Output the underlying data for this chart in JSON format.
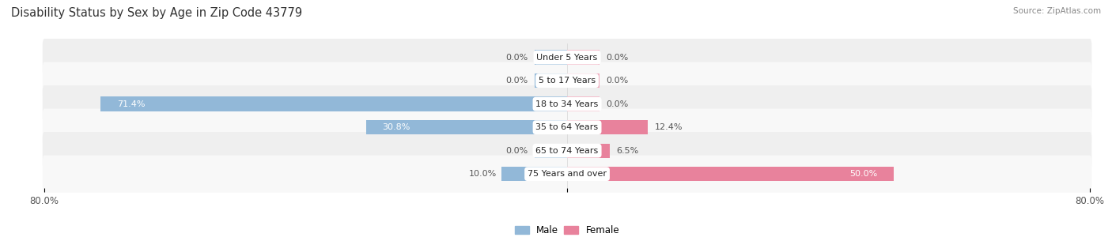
{
  "title": "Disability Status by Sex by Age in Zip Code 43779",
  "source": "Source: ZipAtlas.com",
  "categories": [
    "Under 5 Years",
    "5 to 17 Years",
    "18 to 34 Years",
    "35 to 64 Years",
    "65 to 74 Years",
    "75 Years and over"
  ],
  "male_values": [
    0.0,
    0.0,
    71.4,
    30.8,
    0.0,
    10.0
  ],
  "female_values": [
    0.0,
    0.0,
    0.0,
    12.4,
    6.5,
    50.0
  ],
  "male_color": "#92b8d8",
  "female_color": "#e8829c",
  "female_color_light": "#f0a8bc",
  "bar_height": 0.62,
  "stub_size": 5.0,
  "xlim": 80.0,
  "title_fontsize": 10.5,
  "label_fontsize": 8.0,
  "value_fontsize": 8.0,
  "tick_fontsize": 8.5,
  "bg_color": "#ffffff",
  "row_bg_even": "#efefef",
  "row_bg_odd": "#f8f8f8"
}
